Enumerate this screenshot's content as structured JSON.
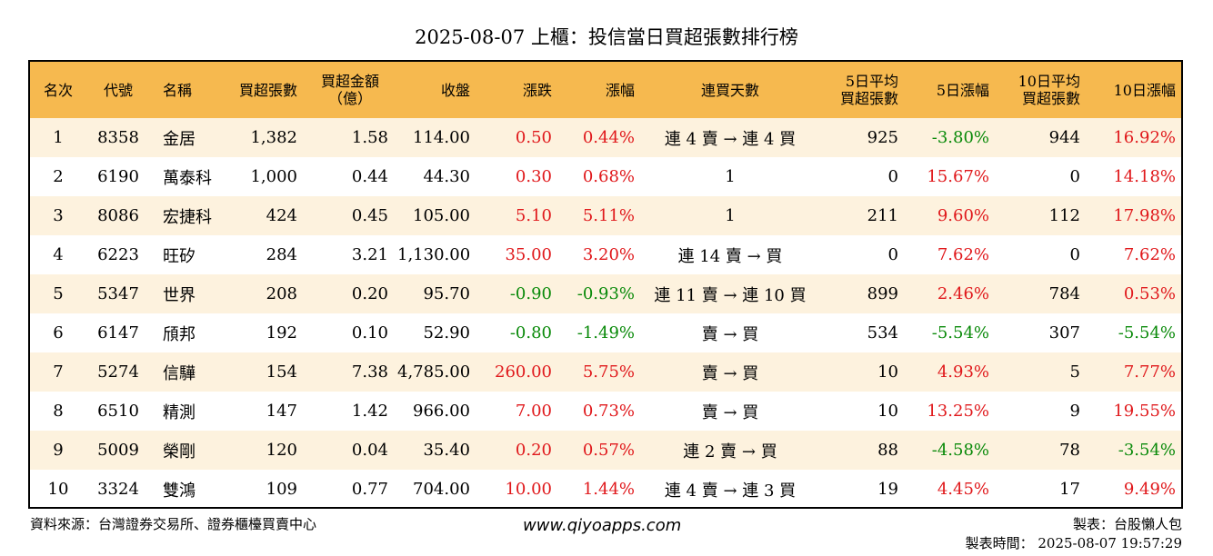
{
  "title": "2025-08-07 上櫃：投信當日買超張數排行榜",
  "columns": {
    "rank": "名次",
    "code": "代號",
    "name": "名稱",
    "net_buy_lots": "買超張數",
    "net_buy_amount_line1": "買超金額",
    "net_buy_amount_line2": "（億）",
    "close": "收盤",
    "change": "漲跌",
    "change_pct": "漲幅",
    "streak": "連買天數",
    "avg5_line1": "5日平均",
    "avg5_line2": "買超張數",
    "pct5": "5日漲幅",
    "avg10_line1": "10日平均",
    "avg10_line2": "買超張數",
    "pct10": "10日漲幅"
  },
  "rows": [
    {
      "rank": "1",
      "code": "8358",
      "name": "金居",
      "lots": "1,382",
      "amount": "1.58",
      "close": "114.00",
      "change": "0.50",
      "change_pct": "0.44%",
      "streak": "連 4 賣 → 連 4 買",
      "avg5": "925",
      "pct5": "-3.80%",
      "avg10": "944",
      "pct10": "16.92%"
    },
    {
      "rank": "2",
      "code": "6190",
      "name": "萬泰科",
      "lots": "1,000",
      "amount": "0.44",
      "close": "44.30",
      "change": "0.30",
      "change_pct": "0.68%",
      "streak": "1",
      "avg5": "0",
      "pct5": "15.67%",
      "avg10": "0",
      "pct10": "14.18%"
    },
    {
      "rank": "3",
      "code": "8086",
      "name": "宏捷科",
      "lots": "424",
      "amount": "0.45",
      "close": "105.00",
      "change": "5.10",
      "change_pct": "5.11%",
      "streak": "1",
      "avg5": "211",
      "pct5": "9.60%",
      "avg10": "112",
      "pct10": "17.98%"
    },
    {
      "rank": "4",
      "code": "6223",
      "name": "旺矽",
      "lots": "284",
      "amount": "3.21",
      "close": "1,130.00",
      "change": "35.00",
      "change_pct": "3.20%",
      "streak": "連 14 賣 → 買",
      "avg5": "0",
      "pct5": "7.62%",
      "avg10": "0",
      "pct10": "7.62%"
    },
    {
      "rank": "5",
      "code": "5347",
      "name": "世界",
      "lots": "208",
      "amount": "0.20",
      "close": "95.70",
      "change": "-0.90",
      "change_pct": "-0.93%",
      "streak": "連 11 賣 → 連 10 買",
      "avg5": "899",
      "pct5": "2.46%",
      "avg10": "784",
      "pct10": "0.53%"
    },
    {
      "rank": "6",
      "code": "6147",
      "name": "頎邦",
      "lots": "192",
      "amount": "0.10",
      "close": "52.90",
      "change": "-0.80",
      "change_pct": "-1.49%",
      "streak": "賣 → 買",
      "avg5": "534",
      "pct5": "-5.54%",
      "avg10": "307",
      "pct10": "-5.54%"
    },
    {
      "rank": "7",
      "code": "5274",
      "name": "信驊",
      "lots": "154",
      "amount": "7.38",
      "close": "4,785.00",
      "change": "260.00",
      "change_pct": "5.75%",
      "streak": "賣 → 買",
      "avg5": "10",
      "pct5": "4.93%",
      "avg10": "5",
      "pct10": "7.77%"
    },
    {
      "rank": "8",
      "code": "6510",
      "name": "精測",
      "lots": "147",
      "amount": "1.42",
      "close": "966.00",
      "change": "7.00",
      "change_pct": "0.73%",
      "streak": "賣 → 買",
      "avg5": "10",
      "pct5": "13.25%",
      "avg10": "9",
      "pct10": "19.55%"
    },
    {
      "rank": "9",
      "code": "5009",
      "name": "榮剛",
      "lots": "120",
      "amount": "0.04",
      "close": "35.40",
      "change": "0.20",
      "change_pct": "0.57%",
      "streak": "連 2 賣 → 買",
      "avg5": "88",
      "pct5": "-4.58%",
      "avg10": "78",
      "pct10": "-3.54%"
    },
    {
      "rank": "10",
      "code": "3324",
      "name": "雙鴻",
      "lots": "109",
      "amount": "0.77",
      "close": "704.00",
      "change": "10.00",
      "change_pct": "1.44%",
      "streak": "連 4 賣 → 連 3 買",
      "avg5": "19",
      "pct5": "4.45%",
      "avg10": "17",
      "pct10": "9.49%"
    }
  ],
  "footer": {
    "source": "資料來源：台灣證券交易所、證券櫃檯買賣中心",
    "website": "www.qiyoapps.com",
    "maker": "製表：台股懶人包",
    "timestamp": "製表時間： 2025-08-07 19:57:29"
  },
  "colors": {
    "header_bg": "#f6b94f",
    "odd_row_bg": "#fdf2de",
    "positive": "#e0181b",
    "negative": "#0a8a0a"
  }
}
